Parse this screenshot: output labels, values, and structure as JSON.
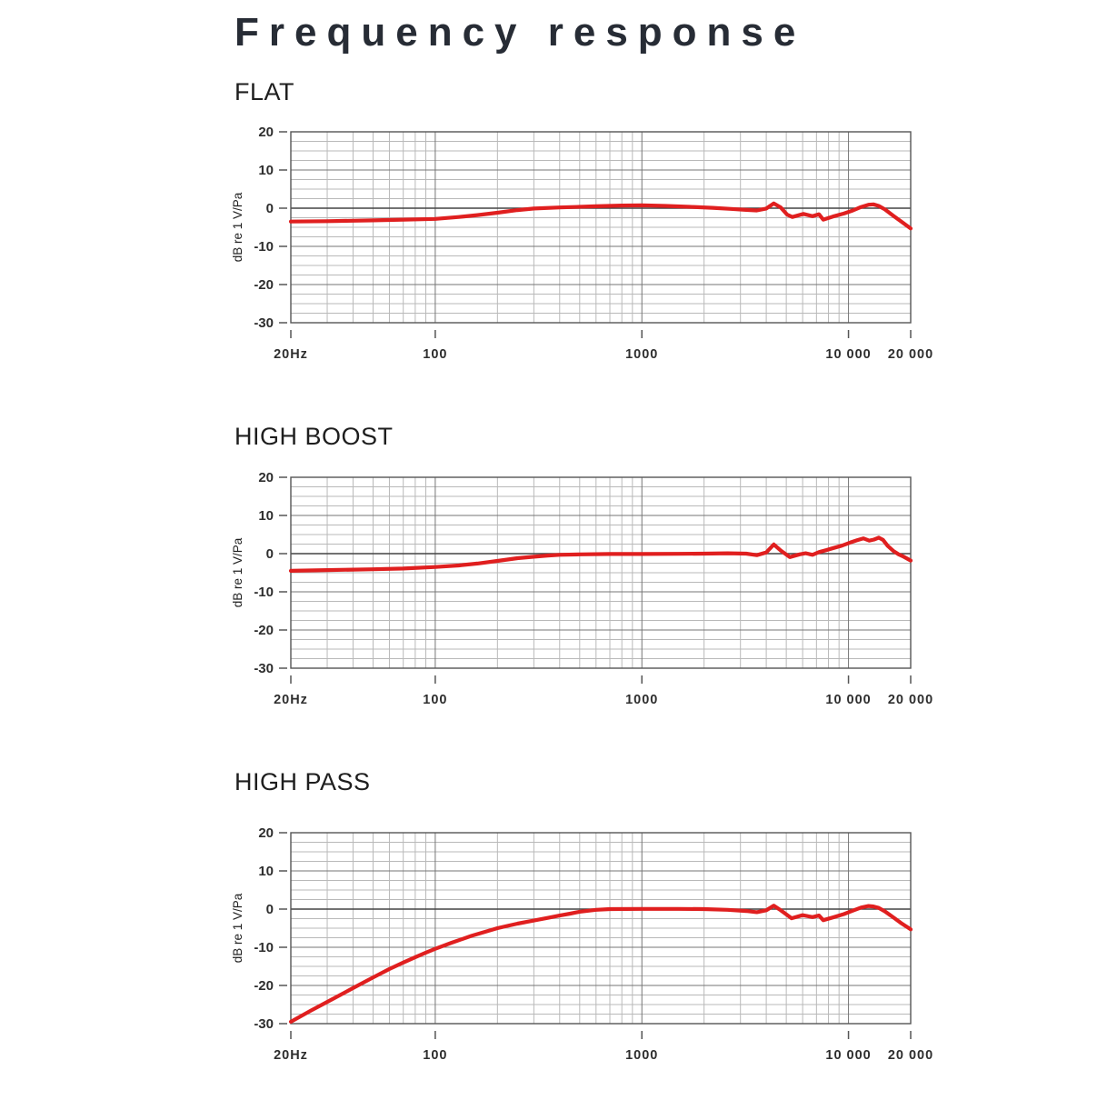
{
  "page": {
    "title": "Frequency response",
    "background": "#ffffff"
  },
  "colors": {
    "curve": "#e01f1f",
    "grid_minor": "#b9b9b9",
    "grid_major": "#757575",
    "zero_line": "#444444",
    "frame": "#555555",
    "tick_text": "#2e2e2e",
    "title_text": "#272c35"
  },
  "chart_data": [
    {
      "type": "line",
      "title": "FLAT",
      "xlabel": "Hz",
      "ylabel": "dB re 1 V/Pa",
      "xscale": "log",
      "xlim": [
        20,
        20000
      ],
      "ylim": [
        -30,
        20
      ],
      "y_minor_step": 2.5,
      "grid": true,
      "legend": "none",
      "y_ticks": [
        20,
        10,
        0,
        -10,
        -20,
        -30
      ],
      "x_ticks": [
        {
          "f": 20,
          "label": "20Hz"
        },
        {
          "f": 100,
          "label": "100"
        },
        {
          "f": 1000,
          "label": "1000"
        },
        {
          "f": 10000,
          "label": "10 000"
        },
        {
          "f": 20000,
          "label": "20 000"
        }
      ],
      "series": [
        {
          "name": "flat-response",
          "color": "#e01f1f",
          "points": [
            [
              20,
              -3.5
            ],
            [
              30,
              -3.4
            ],
            [
              50,
              -3.2
            ],
            [
              70,
              -3.0
            ],
            [
              100,
              -2.8
            ],
            [
              130,
              -2.3
            ],
            [
              160,
              -1.8
            ],
            [
              200,
              -1.2
            ],
            [
              250,
              -0.5
            ],
            [
              300,
              -0.1
            ],
            [
              400,
              0.2
            ],
            [
              600,
              0.5
            ],
            [
              800,
              0.7
            ],
            [
              1000,
              0.75
            ],
            [
              1300,
              0.6
            ],
            [
              1700,
              0.35
            ],
            [
              2200,
              0.1
            ],
            [
              2700,
              -0.2
            ],
            [
              3200,
              -0.45
            ],
            [
              3600,
              -0.6
            ],
            [
              4000,
              -0.1
            ],
            [
              4350,
              1.25
            ],
            [
              4700,
              0.2
            ],
            [
              5050,
              -1.7
            ],
            [
              5350,
              -2.3
            ],
            [
              6050,
              -1.5
            ],
            [
              6700,
              -2.1
            ],
            [
              7200,
              -1.6
            ],
            [
              7550,
              -3.0
            ],
            [
              8400,
              -2.2
            ],
            [
              9500,
              -1.4
            ],
            [
              10500,
              -0.6
            ],
            [
              11500,
              0.3
            ],
            [
              12500,
              0.9
            ],
            [
              13200,
              1.0
            ],
            [
              14000,
              0.6
            ],
            [
              15000,
              -0.3
            ],
            [
              16500,
              -2.0
            ],
            [
              18000,
              -3.5
            ],
            [
              20000,
              -5.3
            ]
          ]
        }
      ]
    },
    {
      "type": "line",
      "title": "HIGH BOOST",
      "xlabel": "Hz",
      "ylabel": "dB re 1 V/Pa",
      "xscale": "log",
      "xlim": [
        20,
        20000
      ],
      "ylim": [
        -30,
        20
      ],
      "y_minor_step": 2.5,
      "grid": true,
      "legend": "none",
      "y_ticks": [
        20,
        10,
        0,
        -10,
        -20,
        -30
      ],
      "x_ticks": [
        {
          "f": 20,
          "label": "20Hz"
        },
        {
          "f": 100,
          "label": "100"
        },
        {
          "f": 1000,
          "label": "1000"
        },
        {
          "f": 10000,
          "label": "10 000"
        },
        {
          "f": 20000,
          "label": "20 000"
        }
      ],
      "series": [
        {
          "name": "high-boost-response",
          "color": "#e01f1f",
          "points": [
            [
              20,
              -4.5
            ],
            [
              30,
              -4.3
            ],
            [
              50,
              -4.1
            ],
            [
              70,
              -3.9
            ],
            [
              100,
              -3.5
            ],
            [
              130,
              -3.1
            ],
            [
              160,
              -2.6
            ],
            [
              200,
              -1.9
            ],
            [
              250,
              -1.2
            ],
            [
              300,
              -0.8
            ],
            [
              350,
              -0.5
            ],
            [
              400,
              -0.3
            ],
            [
              500,
              -0.2
            ],
            [
              700,
              -0.1
            ],
            [
              1000,
              -0.1
            ],
            [
              1500,
              -0.05
            ],
            [
              2000,
              0
            ],
            [
              2600,
              0.1
            ],
            [
              3200,
              0
            ],
            [
              3600,
              -0.4
            ],
            [
              4000,
              0.3
            ],
            [
              4350,
              2.4
            ],
            [
              4700,
              0.8
            ],
            [
              5200,
              -0.9
            ],
            [
              5800,
              -0.2
            ],
            [
              6200,
              0.1
            ],
            [
              6700,
              -0.3
            ],
            [
              7200,
              0.4
            ],
            [
              7800,
              0.9
            ],
            [
              8500,
              1.5
            ],
            [
              9300,
              2.1
            ],
            [
              10200,
              2.9
            ],
            [
              11000,
              3.5
            ],
            [
              11800,
              4.0
            ],
            [
              12600,
              3.4
            ],
            [
              13300,
              3.7
            ],
            [
              14000,
              4.2
            ],
            [
              14700,
              3.6
            ],
            [
              15500,
              2.0
            ],
            [
              16500,
              0.7
            ],
            [
              17500,
              -0.2
            ],
            [
              18500,
              -0.8
            ],
            [
              20000,
              -1.8
            ]
          ]
        }
      ]
    },
    {
      "type": "line",
      "title": "HIGH PASS",
      "xlabel": "Hz",
      "ylabel": "dB re 1 V/Pa",
      "xscale": "log",
      "xlim": [
        20,
        20000
      ],
      "ylim": [
        -30,
        20
      ],
      "y_minor_step": 2.5,
      "grid": true,
      "legend": "none",
      "y_ticks": [
        20,
        10,
        0,
        -10,
        -20,
        -30
      ],
      "x_ticks": [
        {
          "f": 20,
          "label": "20Hz"
        },
        {
          "f": 100,
          "label": "100"
        },
        {
          "f": 1000,
          "label": "1000"
        },
        {
          "f": 10000,
          "label": "10 000"
        },
        {
          "f": 20000,
          "label": "20 000"
        }
      ],
      "series": [
        {
          "name": "high-pass-response",
          "color": "#e01f1f",
          "points": [
            [
              20,
              -29.5
            ],
            [
              25,
              -26.6
            ],
            [
              30,
              -24.3
            ],
            [
              40,
              -20.7
            ],
            [
              50,
              -17.9
            ],
            [
              60,
              -15.7
            ],
            [
              70,
              -14.0
            ],
            [
              80,
              -12.6
            ],
            [
              90,
              -11.4
            ],
            [
              100,
              -10.4
            ],
            [
              120,
              -8.8
            ],
            [
              150,
              -7.0
            ],
            [
              200,
              -5.0
            ],
            [
              250,
              -3.8
            ],
            [
              300,
              -3.0
            ],
            [
              350,
              -2.3
            ],
            [
              400,
              -1.7
            ],
            [
              450,
              -1.2
            ],
            [
              500,
              -0.7
            ],
            [
              600,
              -0.2
            ],
            [
              700,
              0
            ],
            [
              1000,
              0.05
            ],
            [
              1500,
              0.05
            ],
            [
              2000,
              0
            ],
            [
              2600,
              -0.2
            ],
            [
              3200,
              -0.5
            ],
            [
              3600,
              -0.8
            ],
            [
              4000,
              -0.3
            ],
            [
              4350,
              0.9
            ],
            [
              4700,
              -0.3
            ],
            [
              5300,
              -2.4
            ],
            [
              6000,
              -1.6
            ],
            [
              6700,
              -2.1
            ],
            [
              7200,
              -1.7
            ],
            [
              7550,
              -2.9
            ],
            [
              8400,
              -2.2
            ],
            [
              9500,
              -1.3
            ],
            [
              10500,
              -0.4
            ],
            [
              11500,
              0.4
            ],
            [
              12500,
              0.8
            ],
            [
              13200,
              0.7
            ],
            [
              14000,
              0.3
            ],
            [
              15000,
              -0.6
            ],
            [
              16500,
              -2.2
            ],
            [
              18000,
              -3.7
            ],
            [
              20000,
              -5.3
            ]
          ]
        }
      ]
    }
  ]
}
